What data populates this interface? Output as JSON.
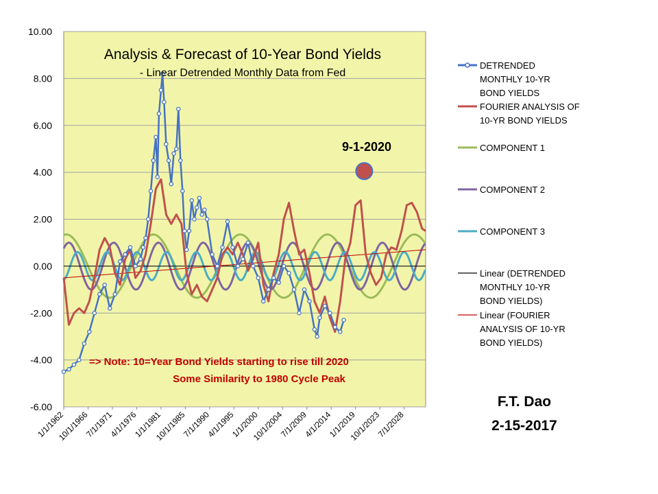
{
  "chart_data": {
    "type": "line",
    "title": "Analysis & Forecast of 10-Year Bond Yields",
    "subtitle": "- Linear Detrended  Monthly Data from Fed",
    "ylim": [
      -6,
      10
    ],
    "y_ticks": [
      "10.00",
      "8.00",
      "6.00",
      "4.00",
      "2.00",
      "0.00",
      "-2.00",
      "-4.00",
      "-6.00"
    ],
    "xlim": [
      1962,
      2032.7
    ],
    "x_ticks": [
      "1/1/1962",
      "10/1/1966",
      "7/1/1971",
      "4/1/1976",
      "1/1/1981",
      "10/1/1985",
      "7/1/1990",
      "4/1/1995",
      "1/1/2000",
      "10/1/2004",
      "7/1/2009",
      "4/1/2014",
      "1/1/2019",
      "10/1/2023",
      "7/1/2028"
    ],
    "grid": "horizontal",
    "legend_position": "right",
    "colors": {
      "plot_bg": "#F2F5A9",
      "detrended": "#4472C4",
      "fourier": "#C0504D",
      "comp1": "#9BBB59",
      "comp2": "#8064A2",
      "comp3": "#4BACC6",
      "linear_detrended": "#000000",
      "linear_fourier": "#C00000",
      "annotation": "#C00000",
      "marker_fill": "#C0504D",
      "marker_edge": "#4472C4"
    },
    "series": [
      {
        "name": "DETRENDED MONTHLY 10-YR BOND YIELDS",
        "x": [
          1962,
          1963,
          1964,
          1965,
          1966,
          1967,
          1968,
          1969,
          1970,
          1971,
          1972,
          1973,
          1974,
          1975,
          1976,
          1977,
          1977.5,
          1978,
          1978.5,
          1979,
          1979.5,
          1980,
          1980.3,
          1980.6,
          1981,
          1981.3,
          1981.6,
          1982,
          1982.5,
          1983,
          1983.5,
          1984,
          1984.4,
          1984.8,
          1985.2,
          1985.6,
          1986,
          1986.5,
          1987,
          1987.5,
          1988,
          1988.5,
          1989,
          1989.5,
          1990,
          1991,
          1992,
          1993,
          1994,
          1995,
          1996,
          1997,
          1998,
          1999,
          2000,
          2001,
          2002,
          2003,
          2004,
          2005,
          2006,
          2007,
          2008,
          2009,
          2010,
          2011,
          2011.5,
          2012,
          2013,
          2014,
          2015,
          2016,
          2016.7
        ],
        "y": [
          -4.5,
          -4.4,
          -4.2,
          -4.0,
          -3.3,
          -2.8,
          -2.0,
          -1.2,
          -0.8,
          -1.8,
          -1.2,
          0.2,
          0.5,
          0.8,
          0.0,
          0.3,
          0.8,
          1.2,
          2.0,
          3.2,
          4.5,
          5.5,
          3.8,
          6.5,
          7.5,
          8.2,
          7.0,
          5.2,
          4.5,
          3.5,
          4.8,
          5.0,
          6.7,
          4.5,
          3.2,
          1.5,
          0.7,
          1.5,
          2.8,
          2.0,
          2.5,
          2.9,
          2.2,
          2.4,
          2.0,
          0.5,
          0.0,
          0.8,
          1.9,
          0.8,
          0.0,
          0.3,
          1.0,
          0.0,
          -0.5,
          -1.5,
          -1.0,
          -0.5,
          -0.7,
          0.0,
          -0.3,
          -1.0,
          -2.0,
          -1.0,
          -1.5,
          -2.7,
          -3.0,
          -2.2,
          -1.7,
          -2.0,
          -2.6,
          -2.8,
          -2.3
        ],
        "marker": "circle"
      },
      {
        "name": "FOURIER ANALYSIS OF 10-YR BOND YIELDS",
        "x": [
          1962,
          1963,
          1964,
          1965,
          1966,
          1967,
          1968,
          1969,
          1970,
          1971,
          1972,
          1973,
          1974,
          1975,
          1976,
          1977,
          1978,
          1979,
          1980,
          1981,
          1982,
          1983,
          1984,
          1985,
          1986,
          1987,
          1988,
          1989,
          1990,
          1991,
          1992,
          1993,
          1994,
          1995,
          1996,
          1997,
          1998,
          1999,
          2000,
          2001,
          2002,
          2003,
          2004,
          2005,
          2006,
          2007,
          2008,
          2009,
          2010,
          2011,
          2012,
          2013,
          2014,
          2015,
          2016,
          2017,
          2018,
          2019,
          2020,
          2021,
          2022,
          2023,
          2024,
          2025,
          2026,
          2027,
          2028,
          2029,
          2030,
          2031,
          2032,
          2032.7
        ],
        "y": [
          -0.5,
          -2.5,
          -2.0,
          -1.8,
          -2.0,
          -1.5,
          -0.5,
          0.7,
          1.2,
          0.8,
          -0.3,
          -0.8,
          0.3,
          0.7,
          -0.5,
          -0.2,
          0.5,
          1.8,
          3.3,
          3.7,
          2.2,
          1.8,
          2.2,
          1.8,
          -0.3,
          -1.2,
          -0.8,
          -1.3,
          -1.5,
          -1.0,
          -0.5,
          0.5,
          0.8,
          0.5,
          1.0,
          0.5,
          -0.2,
          0.3,
          1.0,
          -0.8,
          -1.5,
          -0.3,
          0.5,
          2.0,
          2.7,
          1.5,
          0.5,
          0.7,
          -0.3,
          -1.5,
          -2.0,
          -1.3,
          -2.2,
          -2.8,
          -1.5,
          0.3,
          1.0,
          2.6,
          2.8,
          0.5,
          -0.3,
          -0.8,
          -0.5,
          0.5,
          0.8,
          0.7,
          1.5,
          2.6,
          2.7,
          2.3,
          1.6,
          1.5
        ]
      },
      {
        "name": "COMPONENT 1",
        "amplitude": 1.35,
        "period_years": 17,
        "peak_year": 1979.5,
        "x_range": [
          1962,
          2032.7
        ]
      },
      {
        "name": "COMPONENT 2",
        "amplitude": 1.0,
        "period_years": 8.75,
        "peak_year": 1980.5,
        "x_range": [
          1962,
          2032.7
        ]
      },
      {
        "name": "COMPONENT 3",
        "amplitude": 0.6,
        "period_years": 5.8,
        "peak_year": 1970.5,
        "x_range": [
          1962,
          2032.7
        ]
      },
      {
        "name": "Linear (DETRENDED MONTHLY 10-YR BOND YIELDS)",
        "x": [
          1962,
          2032.7
        ],
        "y": [
          0,
          0
        ]
      },
      {
        "name": "Linear (FOURIER ANALYSIS OF 10-YR BOND YIELDS)",
        "x": [
          1962,
          2032.7
        ],
        "y": [
          -0.5,
          0.7
        ]
      }
    ],
    "forecast_point": {
      "label": "9-1-2020",
      "x": 2020.7,
      "y": 4.05
    },
    "annotations": {
      "note_line1": "=>  Note:  10=Year Bond Yields starting to rise till 2020",
      "note_line2": "Some Similarity to 1980 Cycle Peak"
    },
    "legend": [
      {
        "lines": [
          "DETRENDED",
          "MONTHLY 10-YR",
          "BOND YIELDS"
        ],
        "series_index": 0
      },
      {
        "lines": [
          "FOURIER ANALYSIS OF",
          "10-YR BOND YIELDS"
        ],
        "series_index": 1
      },
      {
        "lines": [
          "COMPONENT 1"
        ],
        "series_index": 2
      },
      {
        "lines": [
          "COMPONENT 2"
        ],
        "series_index": 3
      },
      {
        "lines": [
          "COMPONENT 3"
        ],
        "series_index": 4
      },
      {
        "lines": [
          "Linear (DETRENDED",
          "MONTHLY 10-YR",
          "BOND YIELDS)"
        ],
        "series_index": 5
      },
      {
        "lines": [
          "Linear (FOURIER",
          "ANALYSIS OF 10-YR",
          "BOND YIELDS)"
        ],
        "series_index": 6
      }
    ]
  },
  "signature": {
    "author": "F.T. Dao",
    "date": "2-15-2017"
  }
}
